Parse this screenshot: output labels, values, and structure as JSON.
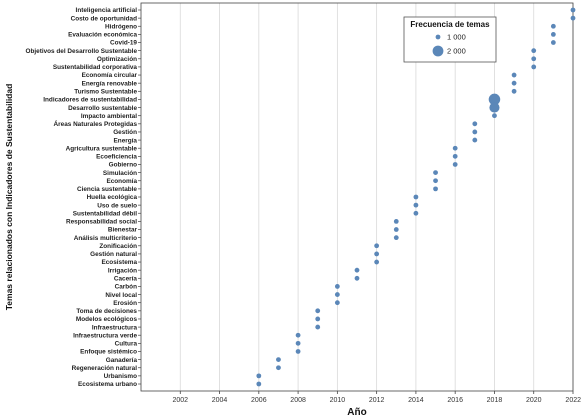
{
  "chart_data": {
    "type": "scatter",
    "xlabel": "Año",
    "ylabel": "Temas relacionados con Indicadores de Sustentabilidad",
    "xlim": [
      2000,
      2022
    ],
    "xticks": [
      2002,
      2004,
      2006,
      2008,
      2010,
      2012,
      2014,
      2016,
      2018,
      2020,
      2022
    ],
    "grid": "vertical",
    "legend": {
      "title": "Frecuencia de temas",
      "placement": "top-right",
      "entries": [
        {
          "label": "1 000",
          "value": 1000
        },
        {
          "label": "2 000",
          "value": 2000
        }
      ]
    },
    "color": "#5b87b8",
    "points": [
      {
        "label": "Inteligencia artificial",
        "x": 2022,
        "size": 300
      },
      {
        "label": "Costo de oportunidad",
        "x": 2022,
        "size": 300
      },
      {
        "label": "Hidrógeno",
        "x": 2021,
        "size": 300
      },
      {
        "label": "Evaluación económica",
        "x": 2021,
        "size": 300
      },
      {
        "label": "Covid-19",
        "x": 2021,
        "size": 300
      },
      {
        "label": "Objetivos del Desarrollo Sustentable",
        "x": 2020,
        "size": 300
      },
      {
        "label": "Optimización",
        "x": 2020,
        "size": 300
      },
      {
        "label": "Sustentabilidad corporativa",
        "x": 2020,
        "size": 300
      },
      {
        "label": "Economía circular",
        "x": 2019,
        "size": 300
      },
      {
        "label": "Energía renovable",
        "x": 2019,
        "size": 300
      },
      {
        "label": "Turismo Sustentable",
        "x": 2019,
        "size": 300
      },
      {
        "label": "Indicadores de sustentabilidad",
        "x": 2018,
        "size": 2200
      },
      {
        "label": "Desarrollo sustentable",
        "x": 2018,
        "size": 1800
      },
      {
        "label": "Impacto ambiental",
        "x": 2018,
        "size": 300
      },
      {
        "label": "Áreas Naturales Protegidas",
        "x": 2017,
        "size": 300
      },
      {
        "label": "Gestión",
        "x": 2017,
        "size": 300
      },
      {
        "label": "Energía",
        "x": 2017,
        "size": 300
      },
      {
        "label": "Agricultura sustentable",
        "x": 2016,
        "size": 300
      },
      {
        "label": "Ecoeficiencia",
        "x": 2016,
        "size": 300
      },
      {
        "label": "Gobierno",
        "x": 2016,
        "size": 300
      },
      {
        "label": "Simulación",
        "x": 2015,
        "size": 300
      },
      {
        "label": "Economía",
        "x": 2015,
        "size": 300
      },
      {
        "label": "Ciencia sustentable",
        "x": 2015,
        "size": 300
      },
      {
        "label": "Huella ecológica",
        "x": 2014,
        "size": 300
      },
      {
        "label": "Uso de suelo",
        "x": 2014,
        "size": 300
      },
      {
        "label": "Sustentabilidad débil",
        "x": 2014,
        "size": 300
      },
      {
        "label": "Responsabilidad social",
        "x": 2013,
        "size": 300
      },
      {
        "label": "Bienestar",
        "x": 2013,
        "size": 300
      },
      {
        "label": "Análisis multicriterio",
        "x": 2013,
        "size": 300
      },
      {
        "label": "Zonificación",
        "x": 2012,
        "size": 300
      },
      {
        "label": "Gestión natural",
        "x": 2012,
        "size": 300
      },
      {
        "label": "Ecosistema",
        "x": 2012,
        "size": 300
      },
      {
        "label": "Irrigación",
        "x": 2011,
        "size": 300
      },
      {
        "label": "Cacería",
        "x": 2011,
        "size": 300
      },
      {
        "label": "Carbón",
        "x": 2010,
        "size": 300
      },
      {
        "label": "Nivel local",
        "x": 2010,
        "size": 300
      },
      {
        "label": "Erosión",
        "x": 2010,
        "size": 300
      },
      {
        "label": "Toma de decisiones",
        "x": 2009,
        "size": 300
      },
      {
        "label": "Modelos ecológicos",
        "x": 2009,
        "size": 300
      },
      {
        "label": "Infraestructura",
        "x": 2009,
        "size": 300
      },
      {
        "label": "Infraestructura verde",
        "x": 2008,
        "size": 300
      },
      {
        "label": "Cultura",
        "x": 2008,
        "size": 300
      },
      {
        "label": "Enfoque sistémico",
        "x": 2008,
        "size": 300
      },
      {
        "label": "Ganadería",
        "x": 2007,
        "size": 300
      },
      {
        "label": "Regeneración natural",
        "x": 2007,
        "size": 300
      },
      {
        "label": "Urbanismo",
        "x": 2006,
        "size": 300
      },
      {
        "label": "Ecosistema urbano",
        "x": 2006,
        "size": 300
      }
    ]
  }
}
